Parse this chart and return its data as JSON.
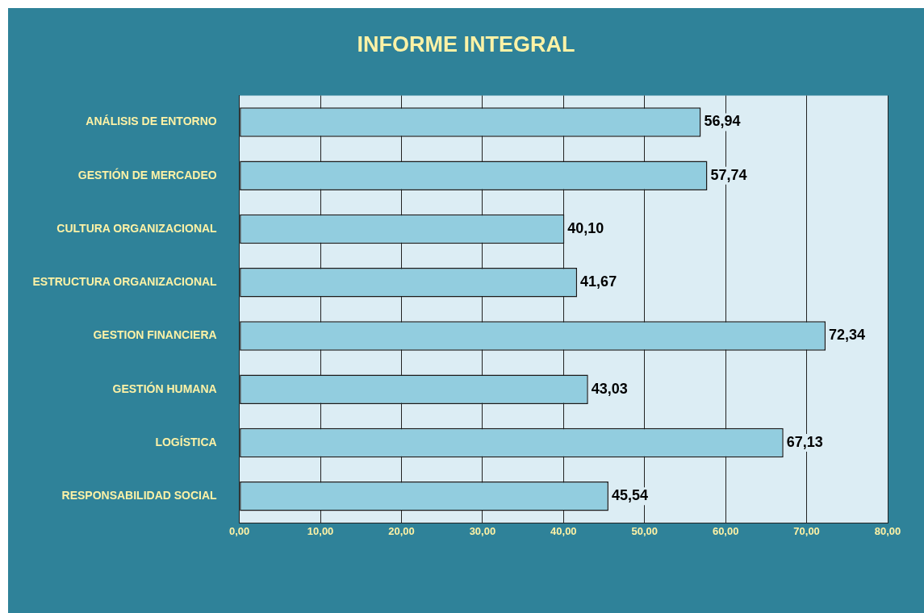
{
  "chart_data": {
    "type": "bar",
    "orientation": "horizontal",
    "title": "INFORME INTEGRAL",
    "categories": [
      "ANÁLISIS DE ENTORNO",
      "GESTIÓN DE MERCADEO",
      "CULTURA ORGANIZACIONAL",
      "ESTRUCTURA ORGANIZACIONAL",
      "GESTION FINANCIERA",
      "GESTIÓN HUMANA",
      "LOGÍSTICA",
      "RESPONSABILIDAD SOCIAL"
    ],
    "values": [
      56.94,
      57.74,
      40.1,
      41.67,
      72.34,
      43.03,
      67.13,
      45.54
    ],
    "value_labels": [
      "56,94",
      "57,74",
      "40,10",
      "41,67",
      "72,34",
      "43,03",
      "67,13",
      "45,54"
    ],
    "color": "#92cddf",
    "xlim": [
      0,
      80
    ],
    "xticks": [
      {
        "value": 0,
        "label": "0,00"
      },
      {
        "value": 10,
        "label": "10,00"
      },
      {
        "value": 20,
        "label": "20,00"
      },
      {
        "value": 30,
        "label": "30,00"
      },
      {
        "value": 40,
        "label": "40,00"
      },
      {
        "value": 50,
        "label": "50,00"
      },
      {
        "value": 60,
        "label": "60,00"
      },
      {
        "value": 70,
        "label": "70,00"
      },
      {
        "value": 80,
        "label": "80,00"
      }
    ],
    "grid": "x",
    "legend": false
  }
}
